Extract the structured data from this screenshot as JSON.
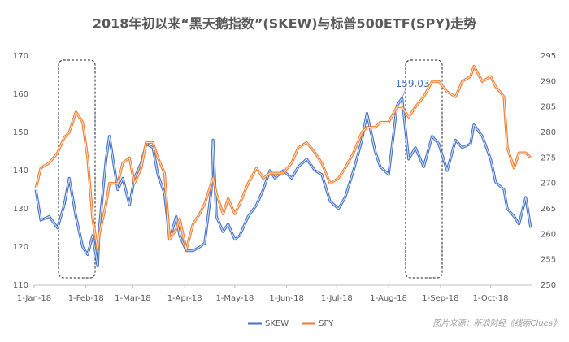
{
  "chart_data": {
    "type": "line",
    "title": "2018年初以来“黑天鹅指数”(SKEW)与标普500ETF(SPY)走势",
    "x": [
      "2018-01-02",
      "2018-01-05",
      "2018-01-10",
      "2018-01-15",
      "2018-01-19",
      "2018-01-22",
      "2018-01-26",
      "2018-01-30",
      "2018-02-02",
      "2018-02-05",
      "2018-02-08",
      "2018-02-09",
      "2018-02-13",
      "2018-02-15",
      "2018-02-20",
      "2018-02-23",
      "2018-02-27",
      "2018-03-02",
      "2018-03-06",
      "2018-03-09",
      "2018-03-13",
      "2018-03-16",
      "2018-03-20",
      "2018-03-23",
      "2018-03-27",
      "2018-03-29",
      "2018-04-02",
      "2018-04-06",
      "2018-04-10",
      "2018-04-13",
      "2018-04-17",
      "2018-04-18",
      "2018-04-20",
      "2018-04-24",
      "2018-04-27",
      "2018-05-01",
      "2018-05-04",
      "2018-05-09",
      "2018-05-14",
      "2018-05-18",
      "2018-05-22",
      "2018-05-25",
      "2018-05-30",
      "2018-06-04",
      "2018-06-08",
      "2018-06-13",
      "2018-06-18",
      "2018-06-22",
      "2018-06-27",
      "2018-07-02",
      "2018-07-06",
      "2018-07-11",
      "2018-07-16",
      "2018-07-19",
      "2018-07-24",
      "2018-07-27",
      "2018-08-01",
      "2018-08-06",
      "2018-08-09",
      "2018-08-13",
      "2018-08-17",
      "2018-08-22",
      "2018-08-27",
      "2018-08-31",
      "2018-09-05",
      "2018-09-10",
      "2018-09-14",
      "2018-09-19",
      "2018-09-21",
      "2018-09-26",
      "2018-10-01",
      "2018-10-04",
      "2018-10-09",
      "2018-10-11",
      "2018-10-15",
      "2018-10-18",
      "2018-10-22",
      "2018-10-25"
    ],
    "series": [
      {
        "name": "SKEW",
        "color": "#4472c4",
        "values": [
          135,
          127,
          128,
          125,
          131,
          138,
          128,
          120,
          118,
          123,
          115,
          125,
          143,
          149,
          135,
          138,
          131,
          138,
          142,
          147,
          146,
          139,
          134,
          122,
          128,
          123,
          119,
          119,
          120,
          121,
          135,
          148,
          128,
          124,
          126,
          122,
          123,
          128,
          131,
          135,
          140,
          138,
          140,
          138,
          141,
          143,
          140,
          139,
          132,
          130,
          133,
          140,
          148,
          155,
          145,
          141,
          139,
          157,
          159.03,
          143,
          146,
          141,
          149,
          147,
          140,
          148,
          146,
          147,
          152,
          149,
          143,
          137,
          135,
          130,
          128,
          126,
          133,
          125
        ]
      },
      {
        "name": "SPY",
        "color": "#ed7d31",
        "axis": "y2",
        "values": [
          269,
          273,
          274,
          276,
          279,
          280,
          284,
          282,
          275,
          263,
          257,
          260,
          266,
          270,
          270,
          274,
          275,
          270,
          273,
          278,
          278,
          275,
          272,
          259,
          261,
          263,
          257,
          262,
          264,
          266,
          270,
          271,
          268,
          264,
          267,
          264,
          266,
          270,
          273,
          271,
          272,
          272,
          272,
          274,
          277,
          278,
          276,
          274,
          270,
          271,
          273,
          276,
          280,
          281,
          281,
          282,
          282,
          285,
          285,
          283,
          285,
          287,
          290,
          290,
          288,
          287,
          290,
          291,
          293,
          290,
          291,
          289,
          287,
          277,
          273,
          276,
          276,
          275
        ]
      }
    ],
    "xlim": [
      "2018-01-01",
      "2018-10-26"
    ],
    "xticks": [
      {
        "value": "2018-01-01",
        "label": "1-Jan-18"
      },
      {
        "value": "2018-02-01",
        "label": "1-Feb-18"
      },
      {
        "value": "2018-03-01",
        "label": "1-Mar-18"
      },
      {
        "value": "2018-04-01",
        "label": "1-Apr-18"
      },
      {
        "value": "2018-05-01",
        "label": "1-May-18"
      },
      {
        "value": "2018-06-01",
        "label": "1-Jun-18"
      },
      {
        "value": "2018-07-01",
        "label": "1-Jul-18"
      },
      {
        "value": "2018-08-01",
        "label": "1-Aug-18"
      },
      {
        "value": "2018-09-01",
        "label": "1-Sep-18"
      },
      {
        "value": "2018-10-01",
        "label": "1-Oct-18"
      }
    ],
    "ylim": [
      110,
      170
    ],
    "yticks": [
      110,
      120,
      130,
      140,
      150,
      160,
      170
    ],
    "y2lim": [
      250,
      295
    ],
    "y2ticks": [
      250,
      255,
      260,
      265,
      270,
      275,
      280,
      285,
      290,
      295
    ],
    "annotations": [
      {
        "text": "159.03",
        "x": "2018-08-09",
        "y": 159.03
      }
    ],
    "legend": "bottom",
    "source": "图片来源：新浪财经《线索Clues》"
  }
}
